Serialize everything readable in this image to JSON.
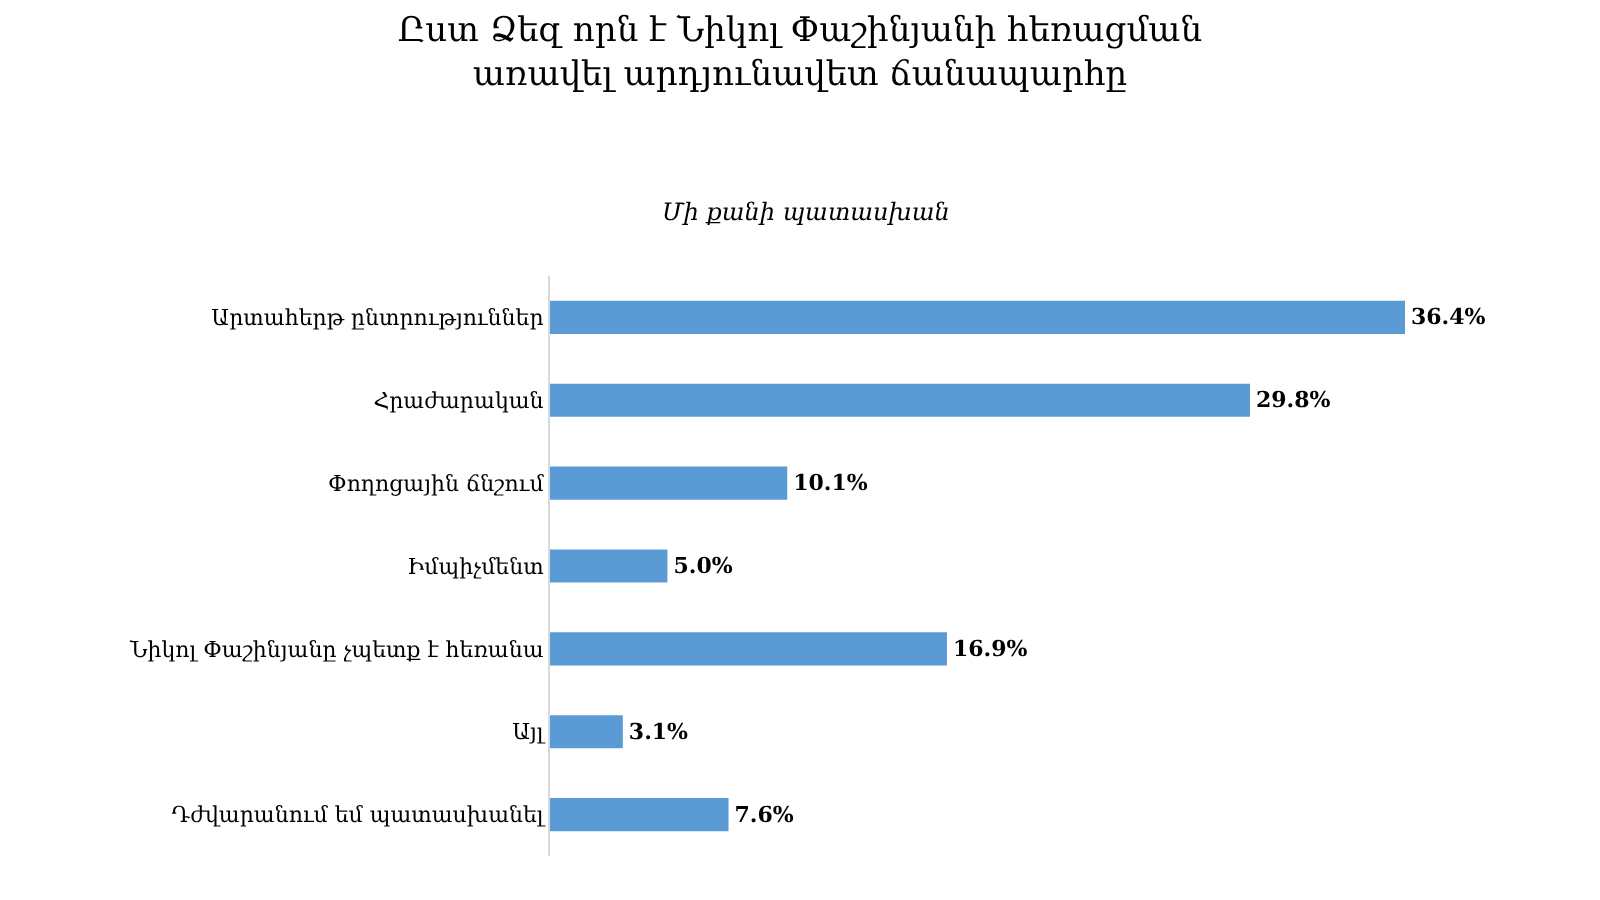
{
  "chart_data": {
    "type": "bar",
    "orientation": "horizontal",
    "title": "Ըստ Ձեզ որն է Նիկոլ Փաշինյանի հեռացման\nառավել արդյունավետ ճանապարհը",
    "subtitle": "Մի քանի պատասխան",
    "categories": [
      "Արտահերթ ընտրություններ",
      "Հրաժարական",
      "Փողոցային ճնշում",
      "Իմպիչմենտ",
      "Նիկոլ Փաշինյանը չպետք է հեռանա",
      "Այլ",
      "Դժվարանում եմ պատասխանել"
    ],
    "values": [
      36.4,
      29.8,
      10.1,
      5.0,
      16.9,
      3.1,
      7.6
    ],
    "value_labels": [
      "36.4%",
      "29.8%",
      "10.1%",
      "5.0%",
      "16.9%",
      "3.1%",
      "7.6%"
    ],
    "color": "#5b9bd5",
    "tick_labels": "y",
    "grid": false,
    "legend": false
  }
}
